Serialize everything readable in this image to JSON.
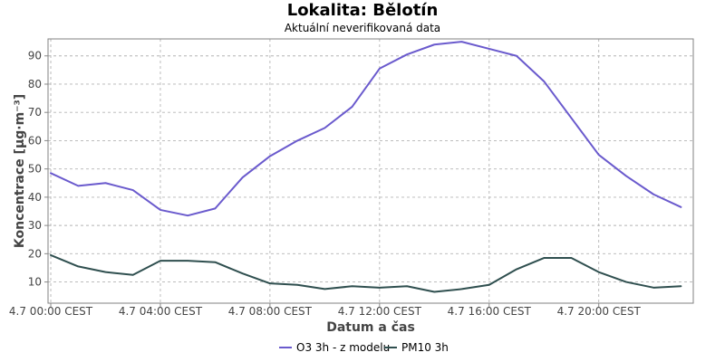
{
  "chart_data": {
    "type": "line",
    "title": "Lokalita: Bělotín",
    "subtitle": "Aktuální neverifikovaná data",
    "xlabel": "Datum a čas",
    "ylabel": "Koncentrace [µg·m⁻³]",
    "x_ticks": [
      "4.7 00:00 CEST",
      "4.7 04:00 CEST",
      "4.7 08:00 CEST",
      "4.7 12:00 CEST",
      "4.7 16:00 CEST",
      "4.7 20:00 CEST"
    ],
    "x_hours": [
      0,
      1,
      2,
      3,
      4,
      5,
      6,
      7,
      8,
      9,
      10,
      11,
      12,
      13,
      14,
      15,
      16,
      17,
      18,
      19,
      20,
      21,
      22,
      23
    ],
    "x_range": [
      -0.1,
      23.45
    ],
    "ylim": [
      2.5,
      96
    ],
    "y_ticks": [
      10,
      20,
      30,
      40,
      50,
      60,
      70,
      80,
      90
    ],
    "grid": true,
    "legend_position": "bottom",
    "series": [
      {
        "name": "O3 3h - z modelu",
        "color": "#6a5acd",
        "values": [
          48.5,
          44,
          45,
          42.5,
          35.5,
          33.5,
          36,
          47,
          54.5,
          60,
          64.5,
          72,
          85.5,
          90.5,
          94,
          95,
          92.5,
          90,
          81,
          68,
          55,
          47.5,
          41,
          36.5
        ]
      },
      {
        "name": "PM10 3h",
        "color": "#2f4f4f",
        "values": [
          19.5,
          15.5,
          13.5,
          12.5,
          17.5,
          17.5,
          17,
          13,
          9.5,
          9,
          7.5,
          8.5,
          8,
          8.5,
          6.5,
          7.5,
          9,
          14.5,
          18.5,
          18.5,
          13.5,
          10,
          8,
          8.5
        ]
      }
    ]
  }
}
